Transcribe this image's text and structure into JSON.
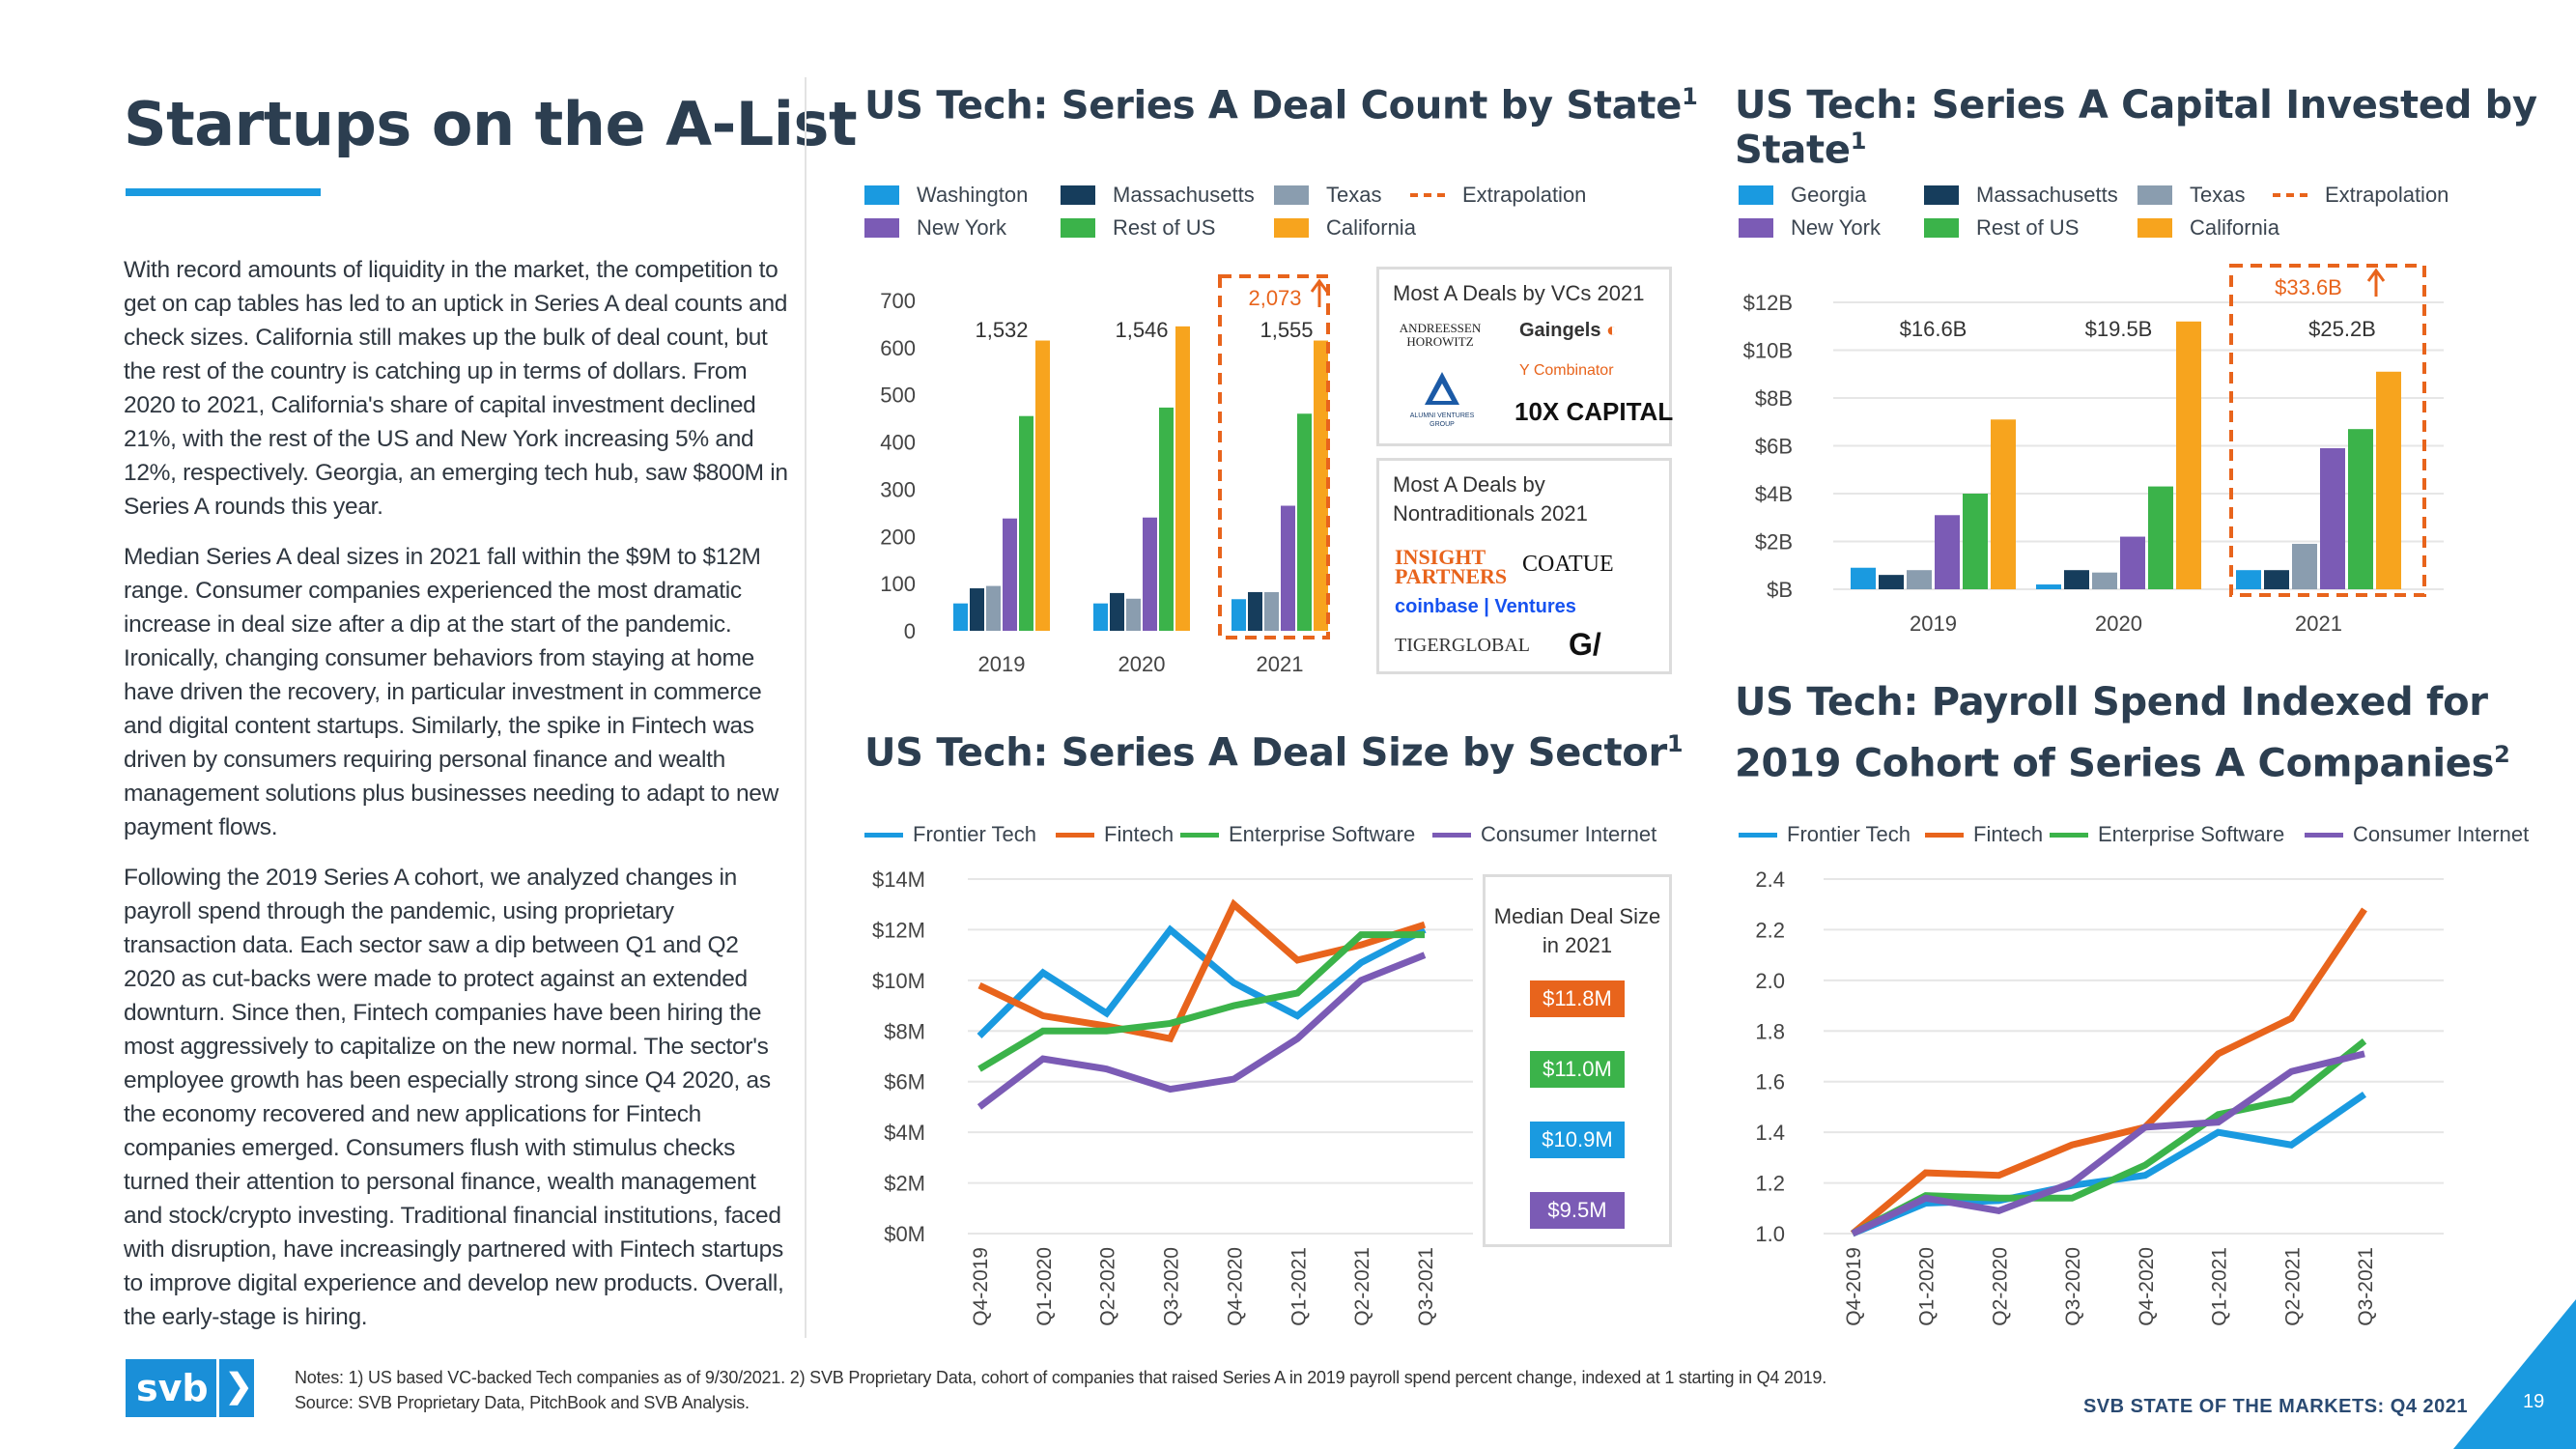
{
  "page": {
    "title": "Startups on the A-List",
    "paragraphs": [
      "With record amounts of liquidity in the market, the competition to get on cap tables has led to an uptick in Series A deal counts and check sizes. California still makes up the bulk of deal count, but the rest of the country is catching up in terms of dollars. From 2020 to 2021, California's share of capital investment declined 21%, with the rest of the US and New York increasing 5% and 12%, respectively. Georgia, an emerging tech hub, saw $800M in Series A rounds this year.",
      "Median Series A deal sizes in 2021 fall within the $9M to $12M range. Consumer companies experienced the most dramatic increase in deal size after a dip at the start of the pandemic. Ironically, changing consumer behaviors from staying at home have driven the recovery, in particular investment in commerce and digital content startups. Similarly, the spike in Fintech was driven by consumers requiring personal finance and wealth management solutions plus businesses needing to adapt to new payment flows.",
      "Following the 2019 Series A cohort, we analyzed changes in payroll spend through the pandemic, using proprietary transaction data. Each sector saw a dip between Q1 and Q2 2020 as cut-backs were made to protect against an extended downturn. Since then, Fintech companies have been hiring the most aggressively to capitalize on the new normal. The sector's employee growth has been especially strong since Q4 2020, as the economy recovered and new applications for Fintech companies emerged. Consumers flush with stimulus checks turned their attention to personal finance, wealth management and stock/crypto investing. Traditional financial institutions, faced with disruption, have increasingly partnered with Fintech startups to improve digital experience and develop new products. Overall, the early-stage is hiring."
    ],
    "notes_line1": "Notes: 1) US based VC-backed Tech companies as of 9/30/2021. 2) SVB Proprietary Data, cohort of companies that raised Series A in 2019 payroll spend percent change, indexed at 1 starting in Q4 2019.",
    "notes_line2": "Source: SVB Proprietary Data, PitchBook and SVB Analysis.",
    "footer": "SVB STATE OF THE MARKETS: Q4 2021",
    "page_number": "19",
    "logo_text": "svb",
    "logo_chevron": "❯"
  },
  "colors": {
    "washington": "#1a9ae0",
    "georgia": "#1a9ae0",
    "massachusetts": "#163d5c",
    "texas": "#8a9daf",
    "new_york": "#7b5bb5",
    "rest_of_us": "#3bb34a",
    "california": "#f7a41e",
    "extrapolation": "#e8641c",
    "frontier": "#1a9ae0",
    "fintech": "#e8641c",
    "enterprise": "#3bb34a",
    "consumer": "#7b5bb5",
    "title": "#2c3e50",
    "accent": "#1a9ae0"
  },
  "boxes": {
    "vc_title": "Most A Deals by VCs 2021",
    "vc_logos": [
      "ANDREESSEN HOROWITZ",
      "Gaingels",
      "Y Combinator",
      "ALUMNI VENTURES GROUP",
      "10X CAPITAL"
    ],
    "nontrad_title": "Most A Deals by Nontraditionals 2021",
    "nontrad_logos": [
      "INSIGHT PARTNERS",
      "COATUE",
      "coinbase | Ventures",
      "TIGERGLOBAL",
      "G/"
    ]
  },
  "chart_data": [
    {
      "id": "deal_count",
      "type": "bar",
      "title": "US Tech: Series A Deal Count by State",
      "title_sup": "1",
      "categories": [
        "2019",
        "2020",
        "2021"
      ],
      "series": [
        {
          "name": "Washington",
          "values": [
            58,
            58,
            67
          ]
        },
        {
          "name": "Massachusetts",
          "values": [
            90,
            80,
            82
          ]
        },
        {
          "name": "Texas",
          "values": [
            95,
            68,
            82
          ]
        },
        {
          "name": "New York",
          "values": [
            238,
            240,
            265
          ]
        },
        {
          "name": "Rest of US",
          "values": [
            455,
            473,
            460
          ]
        },
        {
          "name": "California",
          "values": [
            615,
            645,
            615
          ]
        }
      ],
      "legend_order": [
        "Washington",
        "Massachusetts",
        "Texas",
        "Extrapolation",
        "New York",
        "Rest of US",
        "California"
      ],
      "totals": [
        "1,532",
        "1,546",
        "1,555"
      ],
      "extrapolation_label": "2,073",
      "ylim": [
        0,
        700
      ],
      "yticks": [
        "0",
        "100",
        "200",
        "300",
        "400",
        "500",
        "600",
        "700"
      ],
      "ytick_values": [
        0,
        100,
        200,
        300,
        400,
        500,
        600,
        700
      ]
    },
    {
      "id": "capital",
      "type": "bar",
      "title": "US Tech: Series A Capital Invested by State",
      "title_sup": "1",
      "categories": [
        "2019",
        "2020",
        "2021"
      ],
      "series": [
        {
          "name": "Georgia",
          "values": [
            0.9,
            0.2,
            0.8
          ]
        },
        {
          "name": "Massachusetts",
          "values": [
            0.6,
            0.8,
            0.8
          ]
        },
        {
          "name": "Texas",
          "values": [
            0.8,
            0.7,
            1.9
          ]
        },
        {
          "name": "New York",
          "values": [
            3.1,
            2.2,
            5.9
          ]
        },
        {
          "name": "Rest of US",
          "values": [
            4.0,
            4.3,
            6.7
          ]
        },
        {
          "name": "California",
          "values": [
            7.1,
            11.2,
            9.1
          ]
        }
      ],
      "legend_order": [
        "Georgia",
        "Massachusetts",
        "Texas",
        "Extrapolation",
        "New York",
        "Rest of US",
        "California"
      ],
      "totals": [
        "$16.6B",
        "$19.5B",
        "$25.2B"
      ],
      "extrapolation_label": "$33.6B",
      "ylim": [
        0,
        12
      ],
      "yticks": [
        "$B",
        "$2B",
        "$4B",
        "$6B",
        "$8B",
        "$10B",
        "$12B"
      ],
      "ytick_values": [
        0,
        2,
        4,
        6,
        8,
        10,
        12
      ]
    },
    {
      "id": "deal_size",
      "type": "line",
      "title": "US Tech: Series A Deal Size by Sector",
      "title_sup": "1",
      "x": [
        "Q4-2019",
        "Q1-2020",
        "Q2-2020",
        "Q3-2020",
        "Q4-2020",
        "Q1-2021",
        "Q2-2021",
        "Q3-2021"
      ],
      "series": [
        {
          "name": "Frontier Tech",
          "values": [
            7.8,
            10.3,
            8.7,
            12.0,
            9.9,
            8.6,
            10.7,
            12.0
          ]
        },
        {
          "name": "Fintech",
          "values": [
            9.8,
            8.6,
            8.2,
            7.7,
            13.0,
            10.8,
            11.4,
            12.2
          ]
        },
        {
          "name": "Enterprise Software",
          "values": [
            6.5,
            8.0,
            8.0,
            8.3,
            9.0,
            9.5,
            11.8,
            11.8
          ]
        },
        {
          "name": "Consumer Internet",
          "values": [
            5.0,
            6.9,
            6.5,
            5.7,
            6.1,
            7.7,
            10.0,
            11.0
          ]
        }
      ],
      "ylim": [
        0,
        14
      ],
      "yticks": [
        "$0M",
        "$2M",
        "$4M",
        "$6M",
        "$8M",
        "$10M",
        "$12M",
        "$14M"
      ],
      "ytick_values": [
        0,
        2,
        4,
        6,
        8,
        10,
        12,
        14
      ],
      "median_title": "Median Deal Size in 2021",
      "medians": [
        {
          "label": "$11.8M",
          "series": "Fintech"
        },
        {
          "label": "$11.0M",
          "series": "Enterprise Software"
        },
        {
          "label": "$10.9M",
          "series": "Frontier Tech"
        },
        {
          "label": "$9.5M",
          "series": "Consumer Internet"
        }
      ]
    },
    {
      "id": "payroll",
      "type": "line",
      "title_line1": "US Tech: Payroll Spend Indexed for",
      "title_line2": "2019 Cohort of Series A Companies",
      "title_sup": "2",
      "x": [
        "Q4-2019",
        "Q1-2020",
        "Q2-2020",
        "Q3-2020",
        "Q4-2020",
        "Q1-2021",
        "Q2-2021",
        "Q3-2021"
      ],
      "series": [
        {
          "name": "Frontier Tech",
          "values": [
            1.0,
            1.12,
            1.13,
            1.19,
            1.23,
            1.4,
            1.35,
            1.55
          ]
        },
        {
          "name": "Fintech",
          "values": [
            1.0,
            1.24,
            1.23,
            1.35,
            1.42,
            1.71,
            1.85,
            2.28
          ]
        },
        {
          "name": "Enterprise Software",
          "values": [
            1.0,
            1.15,
            1.14,
            1.14,
            1.27,
            1.47,
            1.53,
            1.76
          ]
        },
        {
          "name": "Consumer Internet",
          "values": [
            1.0,
            1.14,
            1.09,
            1.2,
            1.42,
            1.44,
            1.64,
            1.71
          ]
        }
      ],
      "ylim": [
        1.0,
        2.4
      ],
      "yticks": [
        "1.0",
        "1.2",
        "1.4",
        "1.6",
        "1.8",
        "2.0",
        "2.2",
        "2.4"
      ],
      "ytick_values": [
        1.0,
        1.2,
        1.4,
        1.6,
        1.8,
        2.0,
        2.2,
        2.4
      ]
    }
  ]
}
